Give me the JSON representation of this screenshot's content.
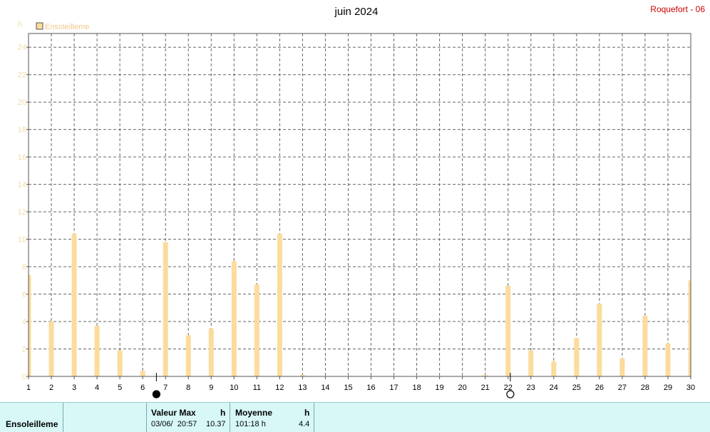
{
  "chart_data": {
    "type": "bar",
    "title": "juin 2024",
    "station": "Roquefort - 06",
    "ylabel": "h",
    "ylim": [
      0,
      25
    ],
    "yticks": [
      0,
      2,
      4,
      6,
      8,
      10,
      12,
      14,
      16,
      18,
      20,
      22,
      24
    ],
    "grid": true,
    "legend_placement": "top-left",
    "categories": [
      "1",
      "2",
      "3",
      "4",
      "5",
      "6",
      "7",
      "8",
      "9",
      "10",
      "11",
      "12",
      "13",
      "14",
      "15",
      "16",
      "17",
      "18",
      "19",
      "20",
      "21",
      "22",
      "23",
      "24",
      "25",
      "26",
      "27",
      "28",
      "29",
      "30"
    ],
    "series": [
      {
        "name": "Ensoleilleme",
        "color": "#fcdc9c",
        "values": [
          7.4,
          4.0,
          10.4,
          3.7,
          1.9,
          0.4,
          9.8,
          3.0,
          3.5,
          8.4,
          6.7,
          10.4,
          0.1,
          0,
          0,
          0,
          0,
          0,
          0,
          0,
          0.1,
          6.6,
          1.9,
          1.1,
          2.8,
          5.3,
          1.3,
          4.4,
          2.4,
          7.0
        ]
      }
    ],
    "moon_phases": [
      {
        "day": 6.6,
        "phase": "new-moon"
      },
      {
        "day": 22.1,
        "phase": "full-moon"
      }
    ]
  },
  "summary": {
    "row_label": "Ensoleilleme",
    "max_header": "Valeur Max",
    "max_unit": "h",
    "max_date": "03/06/  20:57",
    "max_value": "10.37",
    "avg_header": "Moyenne",
    "avg_unit": "h",
    "total": "101:18 h",
    "avg_value": "4.4"
  }
}
